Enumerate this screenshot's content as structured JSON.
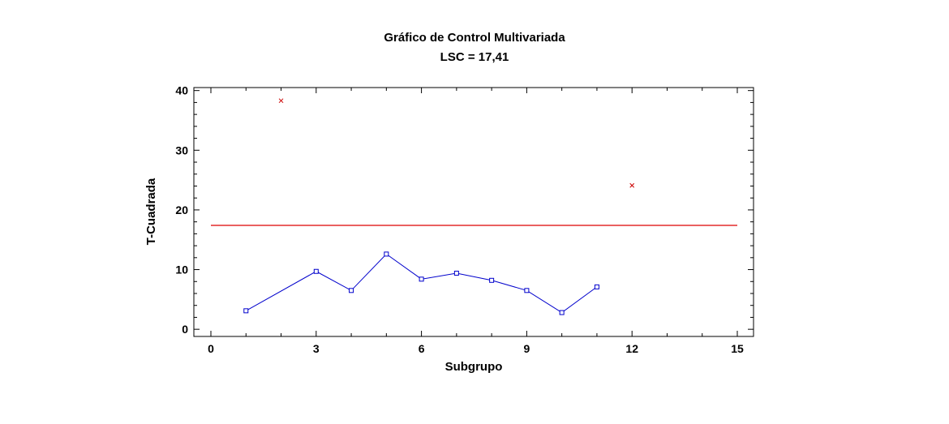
{
  "chart_data": {
    "type": "line",
    "title": "Gráfico de Control Multivariada",
    "subtitle": "LSC = 17,41",
    "xlabel": "Subgrupo",
    "ylabel": "T-Cuadrada",
    "xlim": [
      0,
      15
    ],
    "ylim": [
      -1.2,
      40.5
    ],
    "xticks": [
      0,
      3,
      6,
      9,
      12,
      15
    ],
    "yticks": [
      0,
      10,
      20,
      30,
      40
    ],
    "ucl": 17.41,
    "colors": {
      "series": "#0000cc",
      "ucl": "#dd0000",
      "out_of_control": "#cc0000",
      "axis": "#000000"
    },
    "series": [
      {
        "x": [
          1,
          3,
          4,
          5,
          6,
          7,
          8,
          9,
          10,
          11
        ],
        "values": [
          3.1,
          9.7,
          6.5,
          12.6,
          8.4,
          9.4,
          8.2,
          6.5,
          2.8,
          7.1
        ]
      }
    ],
    "out_of_control_points": [
      {
        "x": 2,
        "y": 38.3
      },
      {
        "x": 12,
        "y": 24.1
      }
    ]
  }
}
